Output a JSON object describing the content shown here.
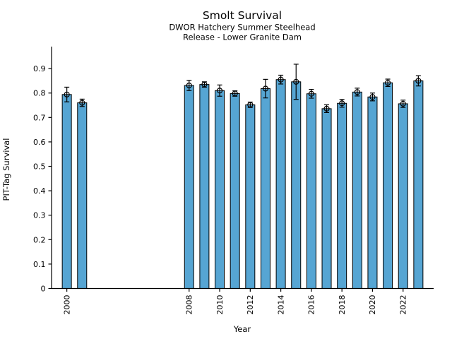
{
  "figure": {
    "title": "Smolt Survival",
    "subtitle_line1": "DWOR Hatchery Summer Steelhead",
    "subtitle_line2": "Release - Lower Granite Dam",
    "xlabel": "Year",
    "ylabel": "PIT-Tag Survival"
  },
  "chart_data": {
    "type": "bar",
    "title": "Smolt Survival",
    "subtitle": [
      "DWOR Hatchery Summer Steelhead",
      "Release - Lower Granite Dam"
    ],
    "xlabel": "Year",
    "ylabel": "PIT-Tag Survival",
    "x": [
      2000,
      2001,
      2008,
      2009,
      2010,
      2011,
      2012,
      2013,
      2014,
      2015,
      2016,
      2017,
      2018,
      2019,
      2020,
      2021,
      2022,
      2023
    ],
    "values": [
      0.794,
      0.76,
      0.831,
      0.835,
      0.81,
      0.798,
      0.752,
      0.818,
      0.855,
      0.846,
      0.797,
      0.736,
      0.758,
      0.804,
      0.784,
      0.842,
      0.756,
      0.85
    ],
    "errors": [
      0.03,
      0.015,
      0.021,
      0.011,
      0.023,
      0.011,
      0.011,
      0.038,
      0.018,
      0.072,
      0.018,
      0.016,
      0.016,
      0.016,
      0.016,
      0.015,
      0.015,
      0.021
    ],
    "xticks": [
      2000,
      2008,
      2010,
      2012,
      2014,
      2016,
      2018,
      2020,
      2022
    ],
    "yticks": [
      0,
      0.1,
      0.2,
      0.3,
      0.4,
      0.5,
      0.6,
      0.7,
      0.8,
      0.9
    ],
    "ytick_labels": [
      "0",
      "0.1",
      "0.2",
      "0.3",
      "0.4",
      "0.5",
      "0.6",
      "0.7",
      "0.8",
      "0.9"
    ],
    "xlim": [
      1999,
      2024
    ],
    "ylim": [
      0,
      0.99
    ],
    "grid": false,
    "legend": null,
    "bar_color": "#56a5d3",
    "bar_edge_color": "#000000",
    "error_bar_color": "#000000",
    "marker": {
      "shape": "open-circle",
      "fill": "none",
      "edge_color": "#000000"
    },
    "axis_color": "#000000",
    "background_color": "#ffffff"
  }
}
